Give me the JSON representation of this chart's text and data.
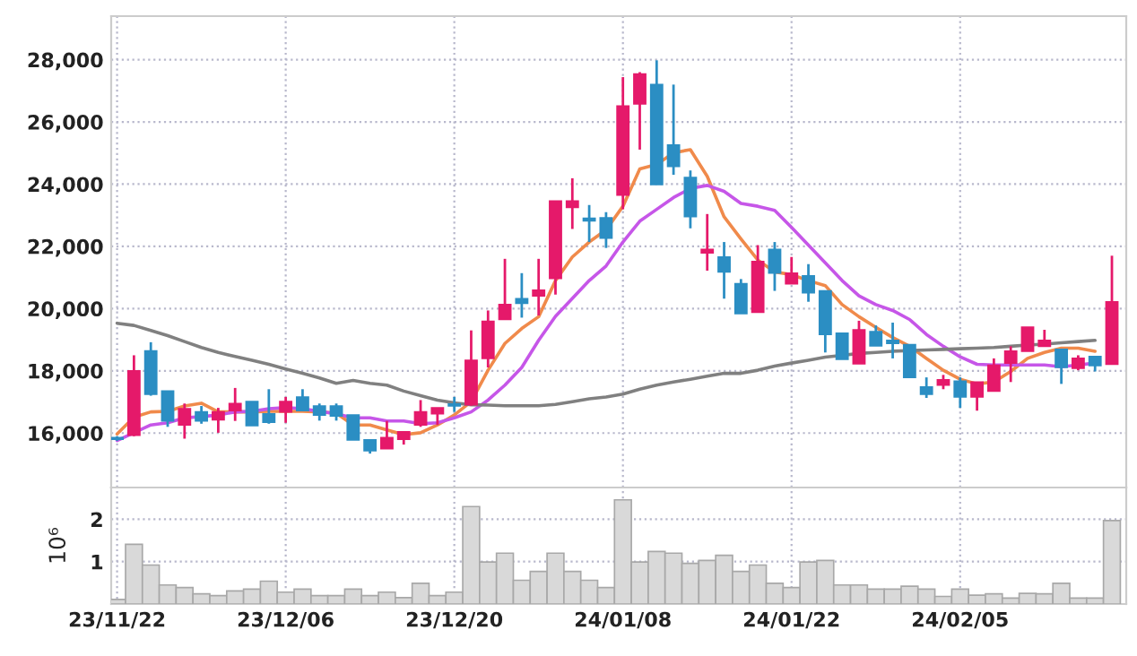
{
  "chart_data": [
    {
      "type": "candlestick",
      "categories": [
        null,
        null,
        null,
        null,
        null,
        null,
        null,
        null,
        null,
        null,
        null,
        null,
        null,
        null,
        null,
        null,
        null,
        null,
        null,
        null,
        null,
        null,
        null,
        null,
        null,
        null,
        null,
        null,
        null,
        null,
        null,
        null,
        null,
        null,
        null,
        null,
        null,
        null,
        null,
        null,
        null,
        null,
        null,
        null,
        null,
        null,
        null,
        null,
        null,
        null,
        null,
        null,
        null,
        null,
        null,
        null,
        null,
        null,
        null,
        null
      ],
      "ohlc": [
        [
          15850,
          15900,
          15750,
          15800
        ],
        [
          15930,
          18500,
          15900,
          18000
        ],
        [
          18640,
          18920,
          17200,
          17250
        ],
        [
          17350,
          17350,
          16200,
          16390
        ],
        [
          16260,
          16950,
          15820,
          16780
        ],
        [
          16680,
          16870,
          16300,
          16390
        ],
        [
          16430,
          16810,
          16010,
          16680
        ],
        [
          16720,
          17450,
          16390,
          16950
        ],
        [
          17010,
          17010,
          16240,
          16240
        ],
        [
          16620,
          17410,
          16300,
          16350
        ],
        [
          16680,
          17160,
          16330,
          17010
        ],
        [
          17160,
          17410,
          16720,
          16720
        ],
        [
          16870,
          16950,
          16400,
          16580
        ],
        [
          16870,
          16950,
          16400,
          16550
        ],
        [
          16580,
          16580,
          15780,
          15780
        ],
        [
          15780,
          15780,
          15340,
          15430
        ],
        [
          15500,
          16390,
          15500,
          15850
        ],
        [
          15800,
          16040,
          15630,
          16040
        ],
        [
          16260,
          17060,
          16200,
          16680
        ],
        [
          16620,
          16810,
          16260,
          16810
        ],
        [
          16930,
          17160,
          16680,
          16870
        ],
        [
          16910,
          19300,
          16880,
          18340
        ],
        [
          18400,
          19940,
          18110,
          19590
        ],
        [
          19650,
          21600,
          19650,
          20130
        ],
        [
          20320,
          21140,
          19710,
          20170
        ],
        [
          20410,
          21600,
          19780,
          20590
        ],
        [
          20970,
          23460,
          20450,
          23460
        ],
        [
          23250,
          24190,
          22560,
          23460
        ],
        [
          22900,
          23330,
          22140,
          22820
        ],
        [
          22920,
          23100,
          21950,
          22270
        ],
        [
          23650,
          27440,
          23190,
          26510
        ],
        [
          26580,
          27600,
          25110,
          27540
        ],
        [
          27200,
          27980,
          23990,
          23990
        ],
        [
          25260,
          27200,
          24300,
          24570
        ],
        [
          24210,
          24440,
          22580,
          22960
        ],
        [
          21790,
          23040,
          21220,
          21900
        ],
        [
          21660,
          22140,
          20320,
          21180
        ],
        [
          20800,
          20950,
          19840,
          19840
        ],
        [
          19880,
          22040,
          19880,
          21510
        ],
        [
          21900,
          22140,
          20570,
          21140
        ],
        [
          20800,
          21660,
          20800,
          21140
        ],
        [
          21050,
          21430,
          20220,
          20510
        ],
        [
          20570,
          20570,
          18590,
          19170
        ],
        [
          19210,
          19210,
          18370,
          18370
        ],
        [
          18230,
          19610,
          18230,
          19320
        ],
        [
          19260,
          19460,
          18800,
          18800
        ],
        [
          18980,
          19550,
          18400,
          18880
        ],
        [
          18840,
          18840,
          17790,
          17790
        ],
        [
          17480,
          17790,
          17130,
          17250
        ],
        [
          17540,
          17870,
          17410,
          17710
        ],
        [
          17670,
          17790,
          16810,
          17160
        ],
        [
          17160,
          17640,
          16720,
          17640
        ],
        [
          17350,
          18400,
          17350,
          18180
        ],
        [
          18250,
          18790,
          17640,
          18630
        ],
        [
          18630,
          19400,
          18630,
          19400
        ],
        [
          18790,
          19320,
          18790,
          18980
        ],
        [
          18690,
          18690,
          17580,
          18110
        ],
        [
          18080,
          18500,
          18020,
          18400
        ],
        [
          18460,
          18460,
          17980,
          18170
        ],
        [
          18210,
          21700,
          18210,
          20220
        ]
      ],
      "colors": [
        "#2b8ec3",
        "#e5196a",
        "#2b8ec3",
        "#2b8ec3",
        "#e5196a",
        "#2b8ec3",
        "#e5196a",
        "#e5196a",
        "#2b8ec3",
        "#2b8ec3",
        "#e5196a",
        "#2b8ec3",
        "#2b8ec3",
        "#2b8ec3",
        "#2b8ec3",
        "#2b8ec3",
        "#e5196a",
        "#e5196a",
        "#e5196a",
        "#e5196a",
        "#2b8ec3",
        "#e5196a",
        "#e5196a",
        "#e5196a",
        "#2b8ec3",
        "#e5196a",
        "#e5196a",
        "#e5196a",
        "#2b8ec3",
        "#2b8ec3",
        "#e5196a",
        "#e5196a",
        "#2b8ec3",
        "#2b8ec3",
        "#2b8ec3",
        "#e5196a",
        "#2b8ec3",
        "#2b8ec3",
        "#e5196a",
        "#2b8ec3",
        "#e5196a",
        "#2b8ec3",
        "#2b8ec3",
        "#2b8ec3",
        "#e5196a",
        "#2b8ec3",
        "#2b8ec3",
        "#2b8ec3",
        "#2b8ec3",
        "#e5196a",
        "#2b8ec3",
        "#e5196a",
        "#e5196a",
        "#e5196a",
        "#e5196a",
        "#e5196a",
        "#2b8ec3",
        "#e5196a",
        "#2b8ec3",
        "#e5196a"
      ],
      "series": [
        {
          "type": "line",
          "color": "#f08a4b",
          "values": [
            15970,
            16510,
            16680,
            16700,
            16870,
            16960,
            16680,
            16680,
            16680,
            16700,
            16700,
            16700,
            16680,
            16640,
            16260,
            16260,
            16100,
            15950,
            16010,
            16260,
            16580,
            17010,
            18020,
            18880,
            19360,
            19740,
            20900,
            21660,
            22140,
            22530,
            23290,
            24490,
            24630,
            25010,
            25110,
            24250,
            22950,
            22240,
            21560,
            21180,
            21090,
            20900,
            20740,
            20130,
            19740,
            19400,
            19070,
            18790,
            18400,
            18020,
            17730,
            17580,
            17640,
            17980,
            18400,
            18590,
            18730,
            18730,
            18630,
            null
          ]
        },
        {
          "type": "line",
          "color": "#c656e8",
          "values": [
            15760,
            16010,
            16260,
            16330,
            16490,
            16530,
            16580,
            16680,
            16700,
            16780,
            16820,
            16780,
            16700,
            16620,
            16490,
            16490,
            16390,
            16390,
            16300,
            16330,
            16490,
            16680,
            17060,
            17540,
            18110,
            18980,
            19750,
            20330,
            20900,
            21370,
            22140,
            22810,
            23190,
            23570,
            23860,
            23960,
            23770,
            23380,
            23290,
            23160,
            22610,
            22040,
            21470,
            20900,
            20410,
            20130,
            19940,
            19650,
            19170,
            18790,
            18450,
            18210,
            18190,
            18190,
            18190,
            18190,
            18130,
            18190,
            18250,
            null
          ]
        },
        {
          "type": "line",
          "color": "#808080",
          "values": [
            19530,
            19460,
            19300,
            19130,
            18940,
            18750,
            18590,
            18460,
            18340,
            18210,
            18060,
            17920,
            17770,
            17600,
            17690,
            17600,
            17540,
            17350,
            17200,
            17060,
            16970,
            16910,
            16900,
            16880,
            16880,
            16880,
            16920,
            17010,
            17100,
            17160,
            17250,
            17410,
            17540,
            17640,
            17730,
            17830,
            17920,
            17920,
            18020,
            18150,
            18250,
            18340,
            18440,
            18500,
            18560,
            18590,
            18630,
            18650,
            18670,
            18690,
            18710,
            18730,
            18750,
            18790,
            18830,
            18860,
            18900,
            18940,
            18980,
            null
          ]
        }
      ],
      "ylim": [
        14250,
        29400
      ],
      "yticks": [
        {
          "value": 16000,
          "label": "16,000"
        },
        {
          "value": 18000,
          "label": "18,000"
        },
        {
          "value": 20000,
          "label": "20,000"
        },
        {
          "value": 22000,
          "label": "22,000"
        },
        {
          "value": 24000,
          "label": "24,000"
        },
        {
          "value": 26000,
          "label": "26,000"
        },
        {
          "value": 28000,
          "label": "28,000"
        }
      ],
      "grid": true,
      "tick_labels": "y",
      "marker": "none",
      "line_style": "solid"
    },
    {
      "type": "bar",
      "categories": [
        "23/11/22",
        null,
        null,
        null,
        null,
        null,
        null,
        null,
        null,
        null,
        "23/12/06",
        null,
        null,
        null,
        null,
        null,
        null,
        null,
        null,
        null,
        "23/12/20",
        null,
        null,
        null,
        null,
        null,
        null,
        null,
        null,
        null,
        "24/01/08",
        null,
        null,
        null,
        null,
        null,
        null,
        null,
        null,
        null,
        "24/01/22",
        null,
        null,
        null,
        null,
        null,
        null,
        null,
        null,
        null,
        "24/02/05",
        null,
        null,
        null,
        null,
        null,
        null,
        null,
        null,
        null
      ],
      "values": [
        0.11,
        1.41,
        0.92,
        0.45,
        0.39,
        0.24,
        0.2,
        0.31,
        0.35,
        0.54,
        0.28,
        0.35,
        0.2,
        0.2,
        0.35,
        0.2,
        0.28,
        0.15,
        0.49,
        0.2,
        0.28,
        2.3,
        0.99,
        1.2,
        0.56,
        0.77,
        1.2,
        0.77,
        0.56,
        0.39,
        2.46,
        0.99,
        1.24,
        1.2,
        0.96,
        1.03,
        1.15,
        0.77,
        0.92,
        0.49,
        0.39,
        0.99,
        1.03,
        0.45,
        0.45,
        0.35,
        0.35,
        0.42,
        0.35,
        0.18,
        0.35,
        0.21,
        0.24,
        0.14,
        0.25,
        0.24,
        0.49,
        0.14,
        0.14,
        1.97
      ],
      "color": "#d9d9d9",
      "ylabel": "10⁶",
      "ylim": [
        0,
        2.75
      ],
      "yticks": [
        1,
        2
      ],
      "grid": true
    }
  ]
}
